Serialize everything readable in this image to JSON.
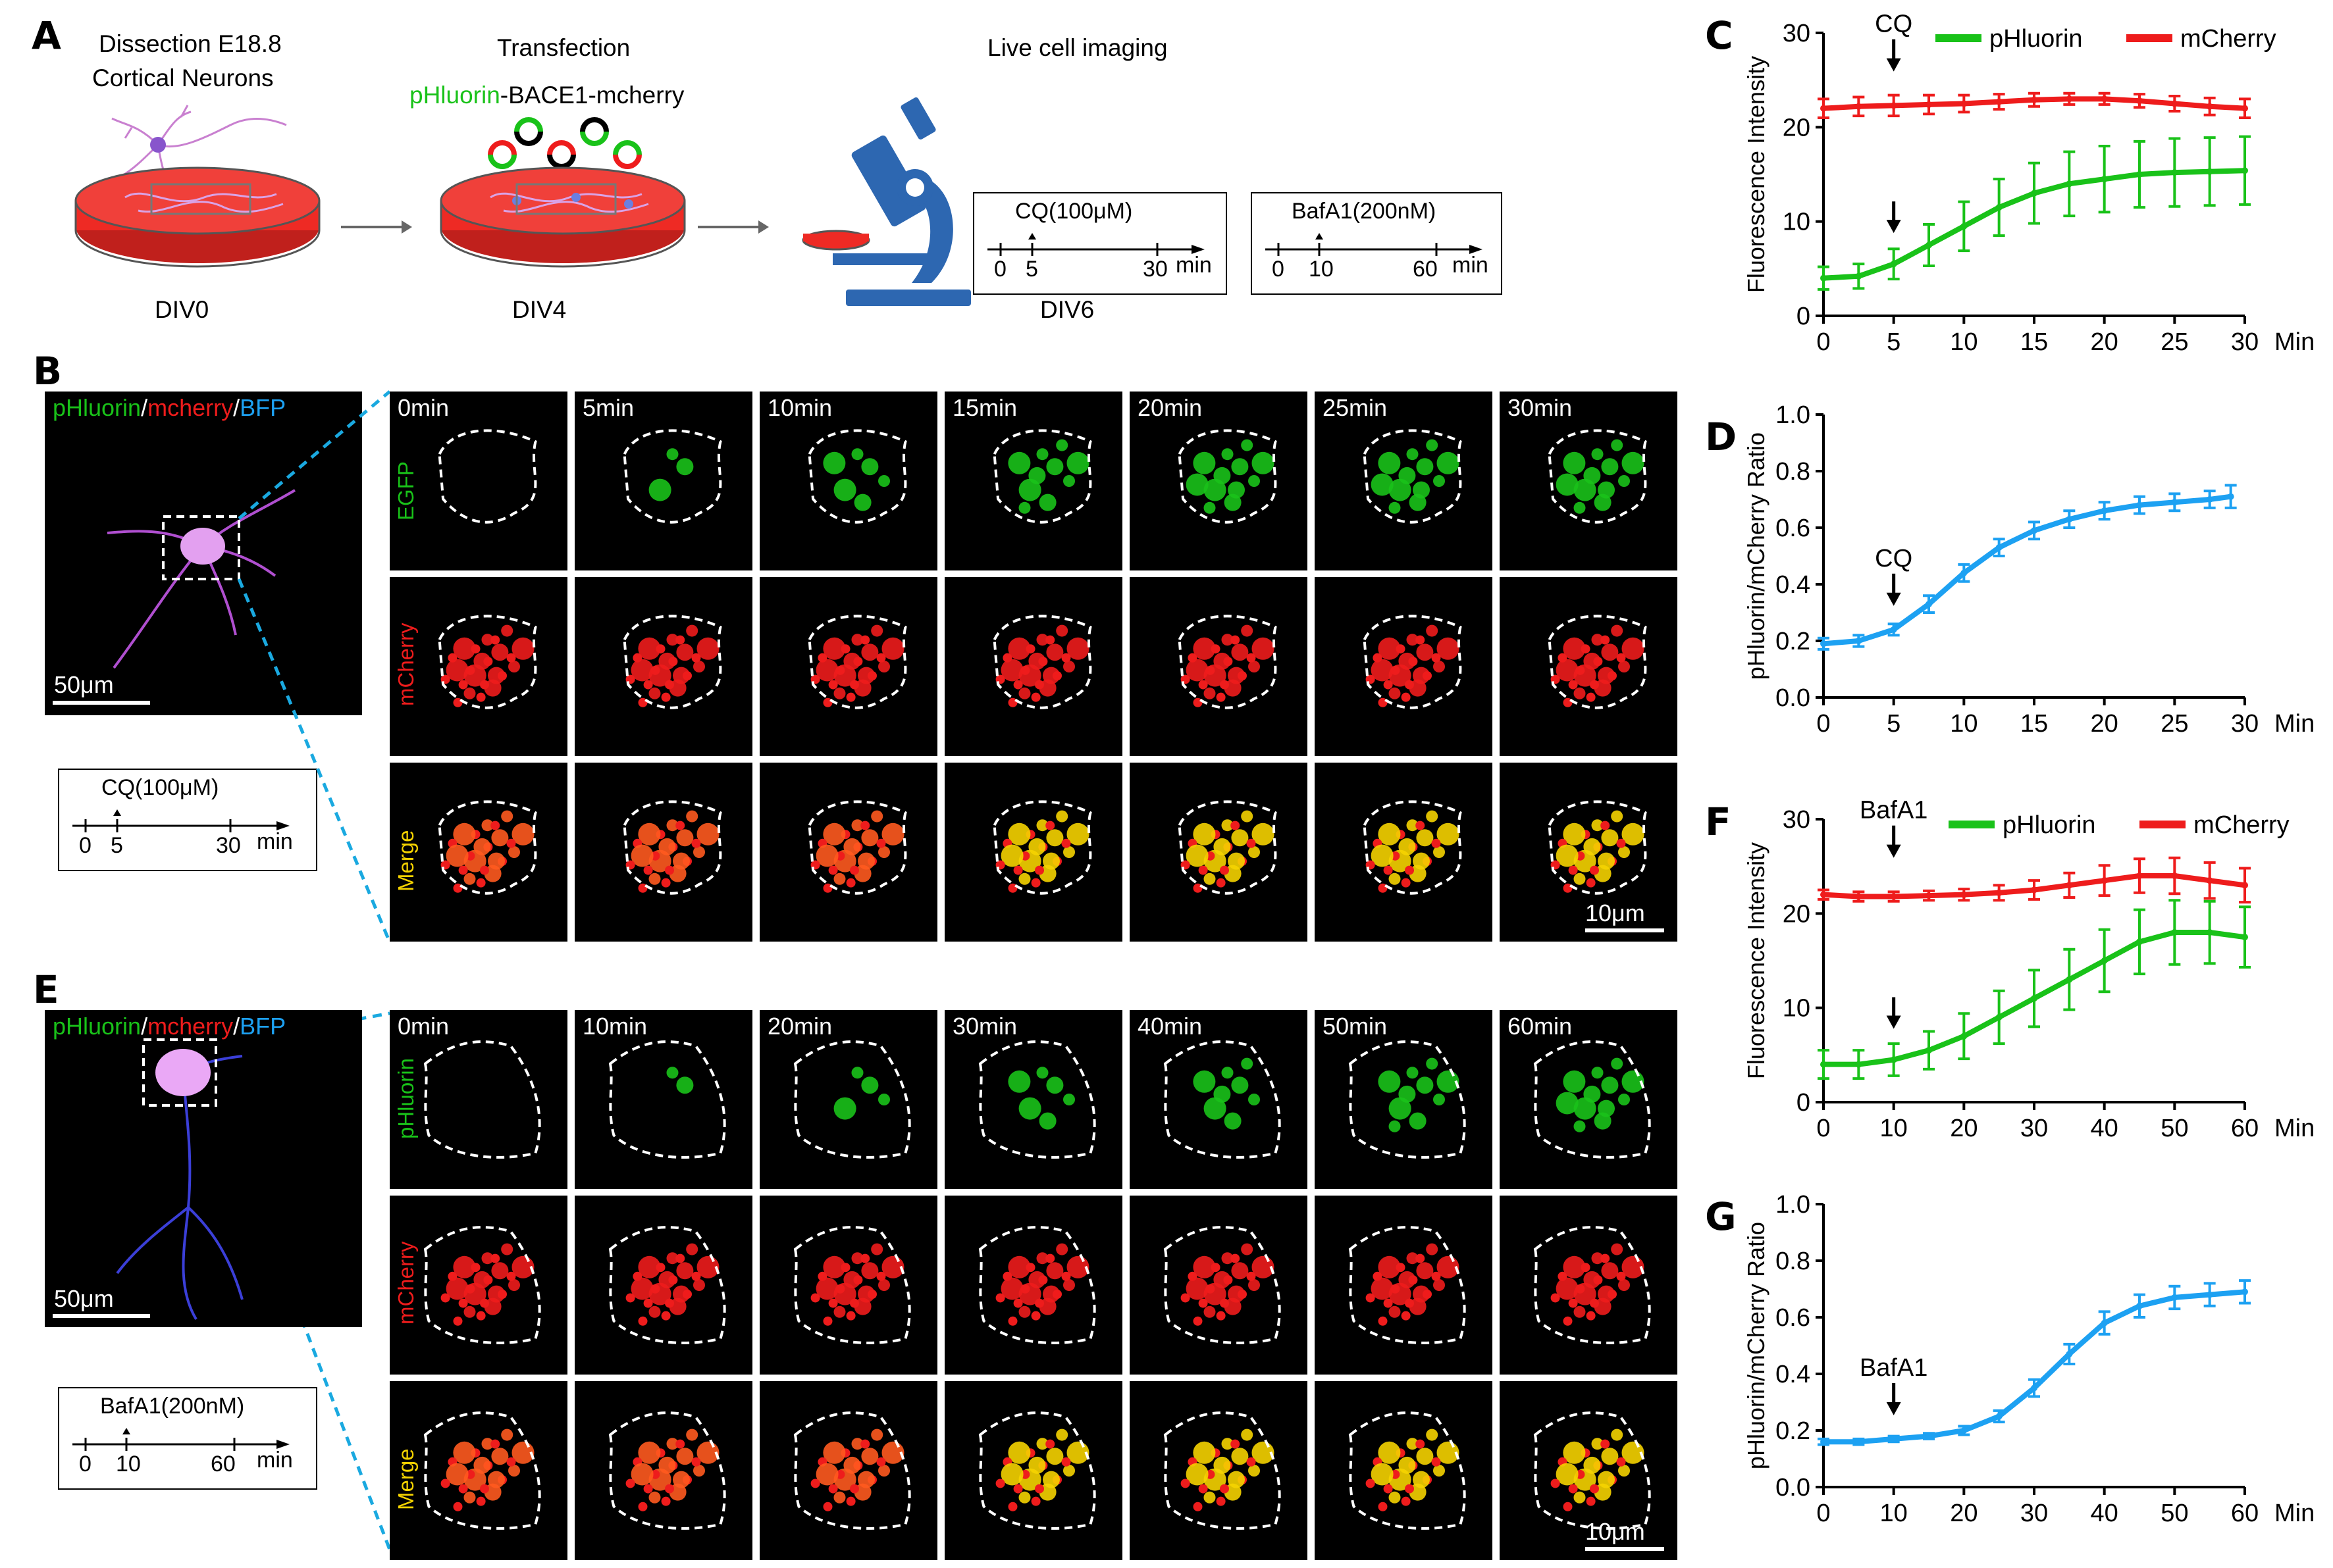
{
  "colors": {
    "green": "#19c219",
    "red": "#ee1c1c",
    "blue": "#1da1f2",
    "yellow": "#f5d300",
    "dish_red": "#ee2a24",
    "microscope_blue": "#2d67b1",
    "cyan_dash": "#1aa9e0"
  },
  "panelA": {
    "letter": "A",
    "step1_title_1": "Dissection E18.8",
    "step1_title_2": "Cortical Neurons",
    "step2_title": "Transfection",
    "step2_construct_green": "pHluorin",
    "step2_construct_rest": "-BACE1-mcherry",
    "step3_title": "Live cell imaging",
    "div0": "DIV0",
    "div4": "DIV4",
    "div6": "DIV6",
    "timeline_cq": {
      "title": "CQ(100μM)",
      "t0": "0",
      "t1": "5",
      "t2": "30",
      "unit": "min"
    },
    "timeline_baf": {
      "title": "BafA1(200nM)",
      "t0": "0",
      "t1": "10",
      "t2": "60",
      "unit": "min"
    }
  },
  "panelB": {
    "letter": "B",
    "overview_label_green": "pHluorin",
    "overview_label_red": "mcherry",
    "overview_label_blue": "BFP",
    "slash": "/",
    "scalebar": "50μm",
    "times": [
      "0min",
      "5min",
      "10min",
      "15min",
      "20min",
      "25min",
      "30min"
    ],
    "rows": [
      "EGFP",
      "mCherry",
      "Merge"
    ],
    "scalebar_tiles": "10μm",
    "timeline": {
      "title": "CQ(100μM)",
      "t0": "0",
      "t1": "5",
      "t2": "30",
      "unit": "min"
    }
  },
  "panelE": {
    "letter": "E",
    "overview_label_green": "pHluorin",
    "overview_label_red": "mcherry",
    "overview_label_blue": "BFP",
    "slash": "/",
    "scalebar": "50μm",
    "times": [
      "0min",
      "10min",
      "20min",
      "30min",
      "40min",
      "50min",
      "60min"
    ],
    "rows": [
      "pHluorin",
      "mCherry",
      "Merge"
    ],
    "scalebar_tiles": "10μm",
    "timeline": {
      "title": "BafA1(200nM)",
      "t0": "0",
      "t1": "10",
      "t2": "60",
      "unit": "min"
    }
  },
  "chart_data": [
    {
      "panel": "C",
      "type": "line",
      "xlabel": "Min",
      "ylabel": "Fluorescence Intensity",
      "xlim": [
        0,
        30
      ],
      "ylim": [
        0,
        30
      ],
      "xticks": [
        0,
        5,
        10,
        15,
        20,
        25,
        30
      ],
      "yticks": [
        0,
        10,
        20,
        30
      ],
      "legend": [
        "pHluorin",
        "mCherry"
      ],
      "annotation": "CQ",
      "annotation_x": 5,
      "x": [
        0,
        2.5,
        5,
        7.5,
        10,
        12.5,
        15,
        17.5,
        20,
        22.5,
        25,
        27.5,
        30
      ],
      "series": [
        {
          "name": "pHluorin",
          "color": "green",
          "values": [
            4,
            4.2,
            5.5,
            7.5,
            9.5,
            11.5,
            13,
            14,
            14.5,
            15,
            15.2,
            15.3,
            15.4
          ],
          "error": [
            1.2,
            1.3,
            1.6,
            2.2,
            2.6,
            3.0,
            3.2,
            3.4,
            3.5,
            3.5,
            3.6,
            3.6,
            3.6
          ]
        },
        {
          "name": "mCherry",
          "color": "red",
          "values": [
            22,
            22.2,
            22.3,
            22.4,
            22.5,
            22.7,
            22.9,
            23,
            23,
            22.8,
            22.5,
            22.2,
            22
          ],
          "error": [
            1.0,
            1.0,
            1.1,
            1.0,
            0.9,
            0.8,
            0.7,
            0.6,
            0.6,
            0.7,
            0.8,
            0.9,
            1.0
          ]
        }
      ]
    },
    {
      "panel": "D",
      "type": "line",
      "xlabel": "Min",
      "ylabel": "pHluorin/mCherry Ratio",
      "xlim": [
        0,
        30
      ],
      "ylim": [
        0,
        1.0
      ],
      "xticks": [
        0,
        5,
        10,
        15,
        20,
        25,
        30
      ],
      "yticks": [
        0.0,
        0.2,
        0.4,
        0.6,
        0.8,
        1.0
      ],
      "annotation": "CQ",
      "annotation_x": 5,
      "x": [
        0,
        2.5,
        5,
        7.5,
        10,
        12.5,
        15,
        17.5,
        20,
        22.5,
        25,
        27.5,
        29
      ],
      "series": [
        {
          "name": "pHluorin/mCherry",
          "color": "blue",
          "values": [
            0.19,
            0.2,
            0.24,
            0.33,
            0.44,
            0.53,
            0.59,
            0.63,
            0.66,
            0.68,
            0.69,
            0.7,
            0.71
          ],
          "error": [
            0.02,
            0.02,
            0.02,
            0.03,
            0.03,
            0.03,
            0.03,
            0.03,
            0.03,
            0.03,
            0.03,
            0.03,
            0.04
          ]
        }
      ]
    },
    {
      "panel": "F",
      "type": "line",
      "xlabel": "Min",
      "ylabel": "Fluorescence Intensity",
      "xlim": [
        0,
        60
      ],
      "ylim": [
        0,
        30
      ],
      "xticks": [
        0,
        10,
        20,
        30,
        40,
        50,
        60
      ],
      "yticks": [
        0,
        10,
        20,
        30
      ],
      "legend": [
        "pHluorin",
        "mCherry"
      ],
      "annotation": "BafA1",
      "annotation_x": 10,
      "x": [
        0,
        5,
        10,
        15,
        20,
        25,
        30,
        35,
        40,
        45,
        50,
        55,
        60
      ],
      "series": [
        {
          "name": "pHluorin",
          "color": "green",
          "values": [
            4,
            4,
            4.5,
            5.5,
            7,
            9,
            11,
            13,
            15,
            17,
            18,
            18,
            17.5
          ],
          "error": [
            1.5,
            1.5,
            1.7,
            2.0,
            2.4,
            2.8,
            3.0,
            3.2,
            3.3,
            3.4,
            3.4,
            3.3,
            3.2
          ]
        },
        {
          "name": "mCherry",
          "color": "red",
          "values": [
            22,
            21.8,
            21.8,
            21.9,
            22,
            22.2,
            22.5,
            23,
            23.5,
            24,
            24,
            23.5,
            23
          ],
          "error": [
            0.5,
            0.5,
            0.5,
            0.5,
            0.6,
            0.8,
            1.0,
            1.3,
            1.6,
            1.8,
            1.9,
            1.9,
            1.8
          ]
        }
      ]
    },
    {
      "panel": "G",
      "type": "line",
      "xlabel": "Min",
      "ylabel": "pHluorin/mCherry Ratio",
      "xlim": [
        0,
        60
      ],
      "ylim": [
        0,
        1.0
      ],
      "xticks": [
        0,
        10,
        20,
        30,
        40,
        50,
        60
      ],
      "yticks": [
        0.0,
        0.2,
        0.4,
        0.6,
        0.8,
        1.0
      ],
      "annotation": "BafA1",
      "annotation_x": 10,
      "x": [
        0,
        5,
        10,
        15,
        20,
        25,
        30,
        35,
        40,
        45,
        50,
        55,
        60
      ],
      "series": [
        {
          "name": "pHluorin/mCherry",
          "color": "blue",
          "values": [
            0.16,
            0.16,
            0.17,
            0.18,
            0.2,
            0.25,
            0.35,
            0.47,
            0.58,
            0.64,
            0.67,
            0.68,
            0.69
          ],
          "error": [
            0.01,
            0.01,
            0.01,
            0.01,
            0.015,
            0.02,
            0.03,
            0.035,
            0.04,
            0.04,
            0.04,
            0.04,
            0.04
          ]
        }
      ]
    }
  ]
}
